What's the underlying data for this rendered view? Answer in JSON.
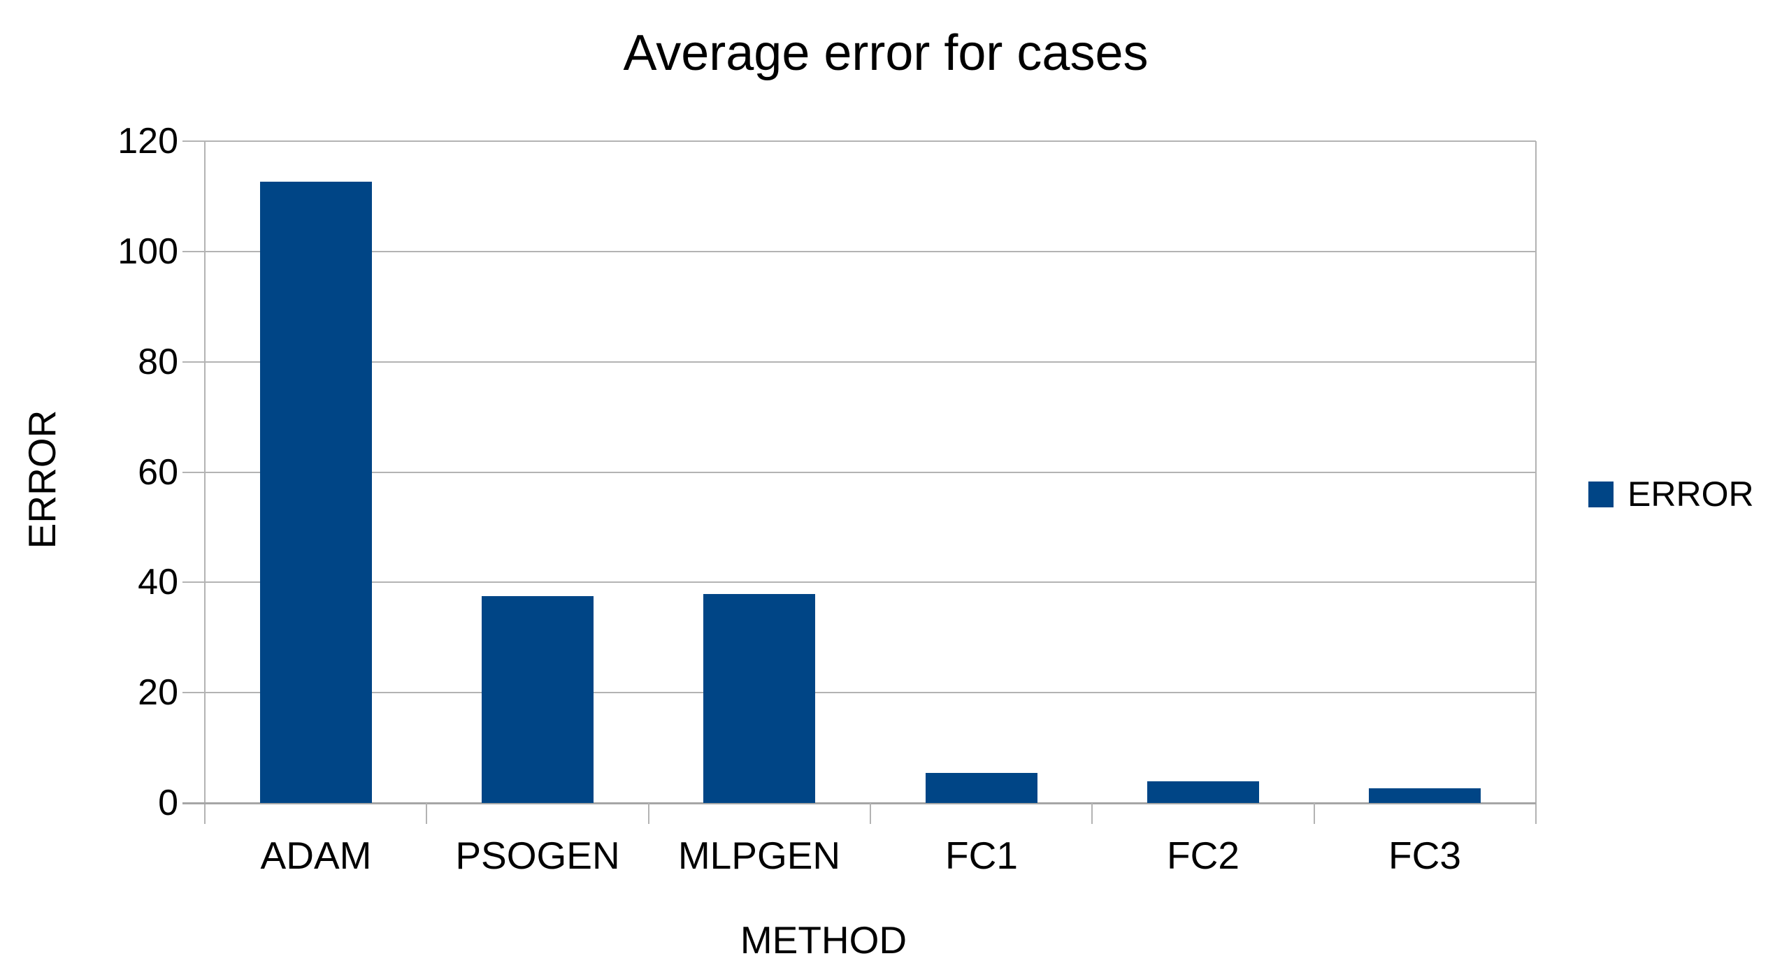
{
  "title": "Average error for cases",
  "legend": {
    "position": "right",
    "items": [
      {
        "label": "ERROR",
        "color": "#004586"
      }
    ]
  },
  "colors": {
    "bar": "#004586",
    "gridline": "#b3b3b3",
    "axis": "#a6a6a6",
    "background": "#ffffff",
    "text": "#000000"
  },
  "chart_data": {
    "type": "bar",
    "title": "Average error for cases",
    "categories": [
      "ADAM",
      "PSOGEN",
      "MLPGEN",
      "FC1",
      "FC2",
      "FC3"
    ],
    "series": [
      {
        "name": "ERROR",
        "values": [
          112.6,
          37.5,
          37.9,
          5.5,
          3.9,
          2.7
        ]
      }
    ],
    "xlabel": "METHOD",
    "ylabel": "ERROR",
    "ylim": [
      0,
      120
    ],
    "yticks": [
      0,
      20,
      40,
      60,
      80,
      100,
      120
    ],
    "grid": true,
    "legend_position": "right",
    "bar_color": "#004586"
  }
}
